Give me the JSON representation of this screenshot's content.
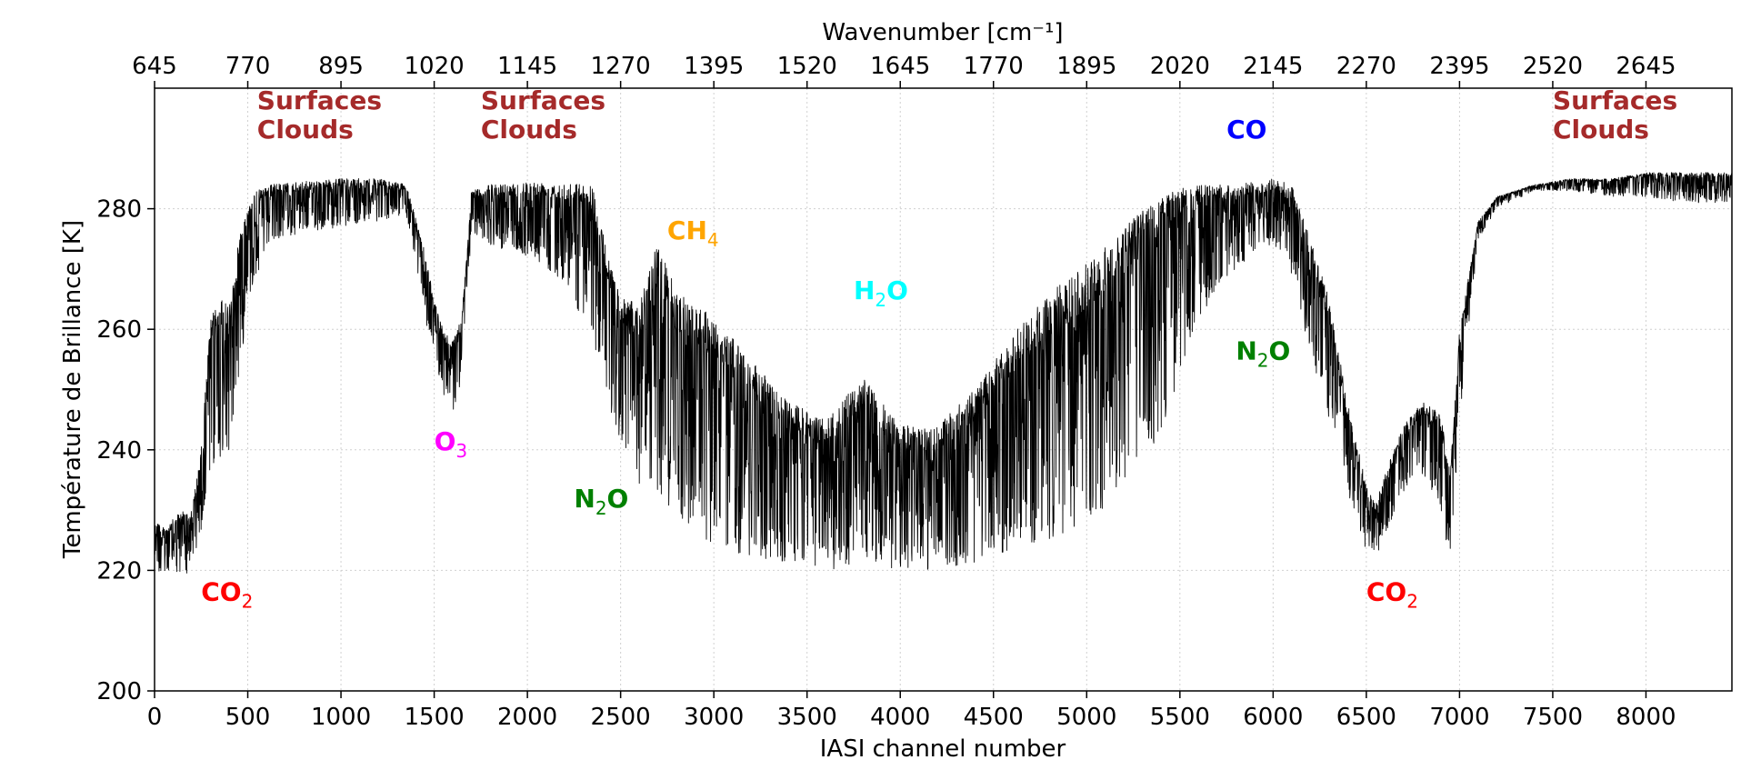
{
  "chart_data": {
    "type": "line",
    "xlabel": "IASI channel number",
    "ylabel": "Température de Brillance [K]",
    "top_xlabel": "Wavenumber [cm⁻¹]",
    "xlim": [
      0,
      8461
    ],
    "ylim": [
      200,
      300
    ],
    "grid": true,
    "x_ticks": [
      0,
      500,
      1000,
      1500,
      2000,
      2500,
      3000,
      3500,
      4000,
      4500,
      5000,
      5500,
      6000,
      6500,
      7000,
      7500,
      8000
    ],
    "x_tick_labels": [
      "0",
      "500",
      "1000",
      "1500",
      "2000",
      "2500",
      "3000",
      "3500",
      "4000",
      "4500",
      "5000",
      "5500",
      "6000",
      "6500",
      "7000",
      "7500",
      "8000"
    ],
    "y_ticks": [
      200,
      220,
      240,
      260,
      280
    ],
    "y_tick_labels": [
      "200",
      "220",
      "240",
      "260",
      "280"
    ],
    "top_x_ticks": [
      0,
      500,
      1000,
      1500,
      2000,
      2500,
      3000,
      3500,
      4000,
      4500,
      5000,
      5500,
      6000,
      6500,
      7000,
      7500,
      8000
    ],
    "top_x_tick_labels": [
      "645",
      "770",
      "895",
      "1020",
      "1145",
      "1270",
      "1395",
      "1520",
      "1645",
      "1770",
      "1895",
      "2020",
      "2145",
      "2270",
      "2395",
      "2520",
      "2645"
    ],
    "series": [
      {
        "color": "#000000",
        "envelope": {
          "x": [
            0,
            50,
            150,
            200,
            250,
            300,
            350,
            400,
            450,
            500,
            550,
            600,
            800,
            1000,
            1200,
            1350,
            1450,
            1500,
            1550,
            1600,
            1650,
            1700,
            1800,
            2000,
            2200,
            2350,
            2450,
            2500,
            2600,
            2700,
            2800,
            2900,
            3000,
            3200,
            3400,
            3600,
            3800,
            4000,
            4200,
            4400,
            4600,
            4800,
            5000,
            5200,
            5400,
            5600,
            5800,
            6000,
            6100,
            6200,
            6300,
            6400,
            6500,
            6550,
            6600,
            6700,
            6800,
            6900,
            6950,
            7000,
            7100,
            7200,
            7400,
            7600,
            7800,
            8000,
            8200,
            8461
          ],
          "upper": [
            229,
            227,
            230,
            230,
            240,
            262,
            265,
            264,
            275,
            281,
            283,
            284,
            284.5,
            285,
            285,
            284,
            273,
            265,
            260,
            258,
            263,
            283,
            284,
            284.5,
            284.5,
            284,
            270,
            266,
            264,
            275,
            266,
            265,
            262,
            255,
            248,
            245,
            252,
            244,
            244,
            250,
            259,
            266,
            271,
            277,
            283,
            284,
            284,
            285,
            284,
            275,
            265,
            248,
            234,
            231,
            236,
            244,
            248,
            246,
            236,
            260,
            278,
            282,
            284,
            285,
            285,
            286,
            286,
            286
          ],
          "lower": [
            220,
            219,
            219,
            220,
            225,
            237,
            238,
            240,
            250,
            265,
            269,
            274,
            276,
            277,
            278,
            279,
            262,
            255,
            249,
            246,
            252,
            276,
            274,
            272,
            268,
            258,
            246,
            240,
            233,
            232,
            229,
            226,
            224,
            222,
            221,
            220,
            221,
            220,
            220,
            221,
            223,
            225,
            228,
            233,
            243,
            262,
            270,
            274,
            268,
            256,
            245,
            232,
            223,
            222,
            226,
            233,
            236,
            230,
            220,
            245,
            275,
            280,
            283,
            283,
            282,
            282,
            281,
            281
          ]
        }
      }
    ],
    "annotations": [
      {
        "text": "Surfaces",
        "x": 550,
        "y": 296.5,
        "color": "#a52a2a"
      },
      {
        "text": "Clouds",
        "x": 550,
        "y": 291.7,
        "color": "#a52a2a"
      },
      {
        "text": "Surfaces",
        "x": 1750,
        "y": 296.5,
        "color": "#a52a2a"
      },
      {
        "text": "Clouds",
        "x": 1750,
        "y": 291.7,
        "color": "#a52a2a"
      },
      {
        "text": "Surfaces",
        "x": 7500,
        "y": 296.5,
        "color": "#a52a2a"
      },
      {
        "text": "Clouds",
        "x": 7500,
        "y": 291.7,
        "color": "#a52a2a"
      },
      {
        "text": "CO",
        "x": 5750,
        "y": 291.7,
        "color": "#0000ff"
      },
      {
        "text": "CO",
        "sub": "2",
        "x": 250,
        "y": 215,
        "color": "#ff0000"
      },
      {
        "text": "CO",
        "sub": "2",
        "x": 6500,
        "y": 215,
        "color": "#ff0000"
      },
      {
        "text": "O",
        "sub": "3",
        "x": 1500,
        "y": 240,
        "color": "#ff00ff"
      },
      {
        "text": "N",
        "sub": "2",
        "tail": "O",
        "x": 2250,
        "y": 230.5,
        "color": "#008000"
      },
      {
        "text": "N",
        "sub": "2",
        "tail": "O",
        "x": 5800,
        "y": 255,
        "color": "#008000"
      },
      {
        "text": "CH",
        "sub": "4",
        "x": 2750,
        "y": 275,
        "color": "#ffa500"
      },
      {
        "text": "H",
        "sub": "2",
        "tail": "O",
        "x": 3750,
        "y": 265,
        "color": "#00ffff"
      }
    ]
  }
}
